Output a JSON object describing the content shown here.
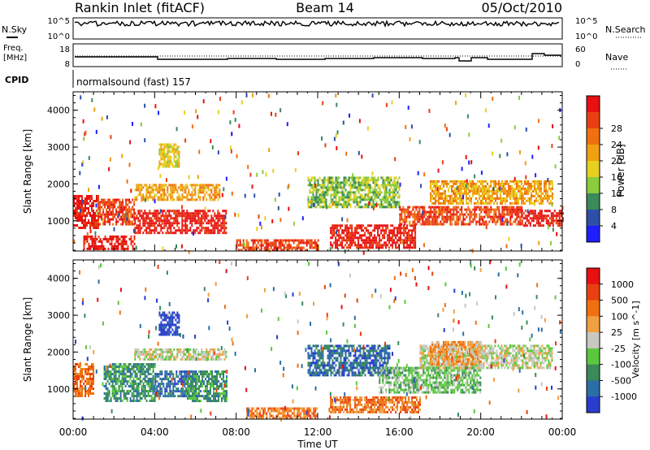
{
  "header": {
    "station": "Rankin Inlet (fitACF)",
    "beam": "Beam 14",
    "date": "05/Oct/2010"
  },
  "status_panels": {
    "nsky_label": "N.Sky",
    "nsky_ticks": [
      "10^5",
      "10^0"
    ],
    "nsearch_label": "N.Search",
    "nsearch_ticks": [
      "10^5",
      "10^0"
    ],
    "freq_label": "Freq.",
    "freq_unit": "[MHz]",
    "freq_ticks": [
      "18",
      "8"
    ],
    "nave_label": "Nave",
    "nave_ticks": [
      "60",
      "0"
    ],
    "cpid_label": "CPID",
    "cpid_value": "normalsound (fast) 157"
  },
  "chart_data": [
    {
      "type": "heatmap",
      "title": "",
      "parameter": "Power",
      "ylabel": "Slant Range [km]",
      "xlabel": "Time UT",
      "x_ticks": [
        "00:00",
        "04:00",
        "08:00",
        "12:00",
        "16:00",
        "20:00",
        "00:00"
      ],
      "y_ticks": [
        1000,
        2000,
        3000,
        4000
      ],
      "ylim": [
        180,
        4500
      ],
      "xlim_hours": [
        0,
        24
      ],
      "colorbar": {
        "label": "Power [dB]",
        "ticks": [
          4,
          8,
          12,
          16,
          20,
          24,
          28
        ],
        "colors": [
          "#1e1eff",
          "#2e4fa8",
          "#3a8a5a",
          "#8acc3c",
          "#e8d020",
          "#f0a010",
          "#f07010",
          "#e84010",
          "#e81010"
        ]
      },
      "regions": [
        {
          "t0": 0.0,
          "t1": 1.2,
          "r0": 800,
          "r1": 1700,
          "color_index": 8
        },
        {
          "t0": 1.2,
          "t1": 3.0,
          "r0": 900,
          "r1": 1600,
          "color_index": 7
        },
        {
          "t0": 3.0,
          "t1": 7.5,
          "r0": 700,
          "r1": 1300,
          "color_index": 8
        },
        {
          "t0": 3.0,
          "t1": 7.2,
          "r0": 1600,
          "r1": 2000,
          "color_index": 5
        },
        {
          "t0": 0.5,
          "t1": 3.0,
          "r0": 250,
          "r1": 600,
          "color_index": 8
        },
        {
          "t0": 4.2,
          "t1": 5.2,
          "r0": 2500,
          "r1": 3100,
          "color_index": 4
        },
        {
          "t0": 12.6,
          "t1": 16.8,
          "r0": 300,
          "r1": 900,
          "color_index": 8
        },
        {
          "t0": 11.5,
          "t1": 16.0,
          "r0": 1400,
          "r1": 2200,
          "color_index": 3
        },
        {
          "t0": 16.0,
          "t1": 22.0,
          "r0": 900,
          "r1": 1400,
          "color_index": 7
        },
        {
          "t0": 17.5,
          "t1": 23.5,
          "r0": 1500,
          "r1": 2100,
          "color_index": 5
        },
        {
          "t0": 22.0,
          "t1": 24.0,
          "r0": 900,
          "r1": 1300,
          "color_index": 8
        },
        {
          "t0": 8.0,
          "t1": 12.0,
          "r0": 200,
          "r1": 500,
          "color_index": 7
        }
      ]
    },
    {
      "type": "heatmap",
      "title": "",
      "parameter": "Velocity",
      "ylabel": "Slant Range [km]",
      "xlabel": "Time UT",
      "x_ticks": [
        "00:00",
        "04:00",
        "08:00",
        "12:00",
        "16:00",
        "20:00",
        "00:00"
      ],
      "y_ticks": [
        1000,
        2000,
        3000,
        4000
      ],
      "ylim": [
        180,
        4500
      ],
      "xlim_hours": [
        0,
        24
      ],
      "colorbar": {
        "label": "Velocity [m s^-1]",
        "ticks": [
          1000,
          500,
          100,
          25,
          -25,
          -100,
          -500,
          -1000
        ],
        "colors": [
          "#2a3ccc",
          "#2a6ea8",
          "#3a8a5a",
          "#5ac83c",
          "#c8c8c0",
          "#f0a040",
          "#f07010",
          "#e84010",
          "#e81010"
        ]
      },
      "regions": [
        {
          "t0": 0.0,
          "t1": 1.0,
          "r0": 800,
          "r1": 1700,
          "color_index": 6
        },
        {
          "t0": 1.5,
          "t1": 4.0,
          "r0": 700,
          "r1": 1700,
          "color_index": 2
        },
        {
          "t0": 4.0,
          "t1": 6.0,
          "r0": 800,
          "r1": 1500,
          "color_index": 1
        },
        {
          "t0": 5.5,
          "t1": 7.5,
          "r0": 700,
          "r1": 1500,
          "color_index": 2
        },
        {
          "t0": 3.0,
          "t1": 7.5,
          "r0": 1800,
          "r1": 2100,
          "color_index": 4
        },
        {
          "t0": 4.2,
          "t1": 5.2,
          "r0": 2500,
          "r1": 3100,
          "color_index": 0
        },
        {
          "t0": 12.6,
          "t1": 17.0,
          "r0": 350,
          "r1": 800,
          "color_index": 6
        },
        {
          "t0": 11.5,
          "t1": 15.5,
          "r0": 1400,
          "r1": 2200,
          "color_index": 1
        },
        {
          "t0": 15.0,
          "t1": 20.0,
          "r0": 900,
          "r1": 1600,
          "color_index": 3
        },
        {
          "t0": 17.0,
          "t1": 23.5,
          "r0": 1600,
          "r1": 2200,
          "color_index": 4
        },
        {
          "t0": 17.5,
          "t1": 20.0,
          "r0": 1700,
          "r1": 2300,
          "color_index": 5
        },
        {
          "t0": 8.5,
          "t1": 12.0,
          "r0": 200,
          "r1": 500,
          "color_index": 6
        }
      ]
    }
  ]
}
